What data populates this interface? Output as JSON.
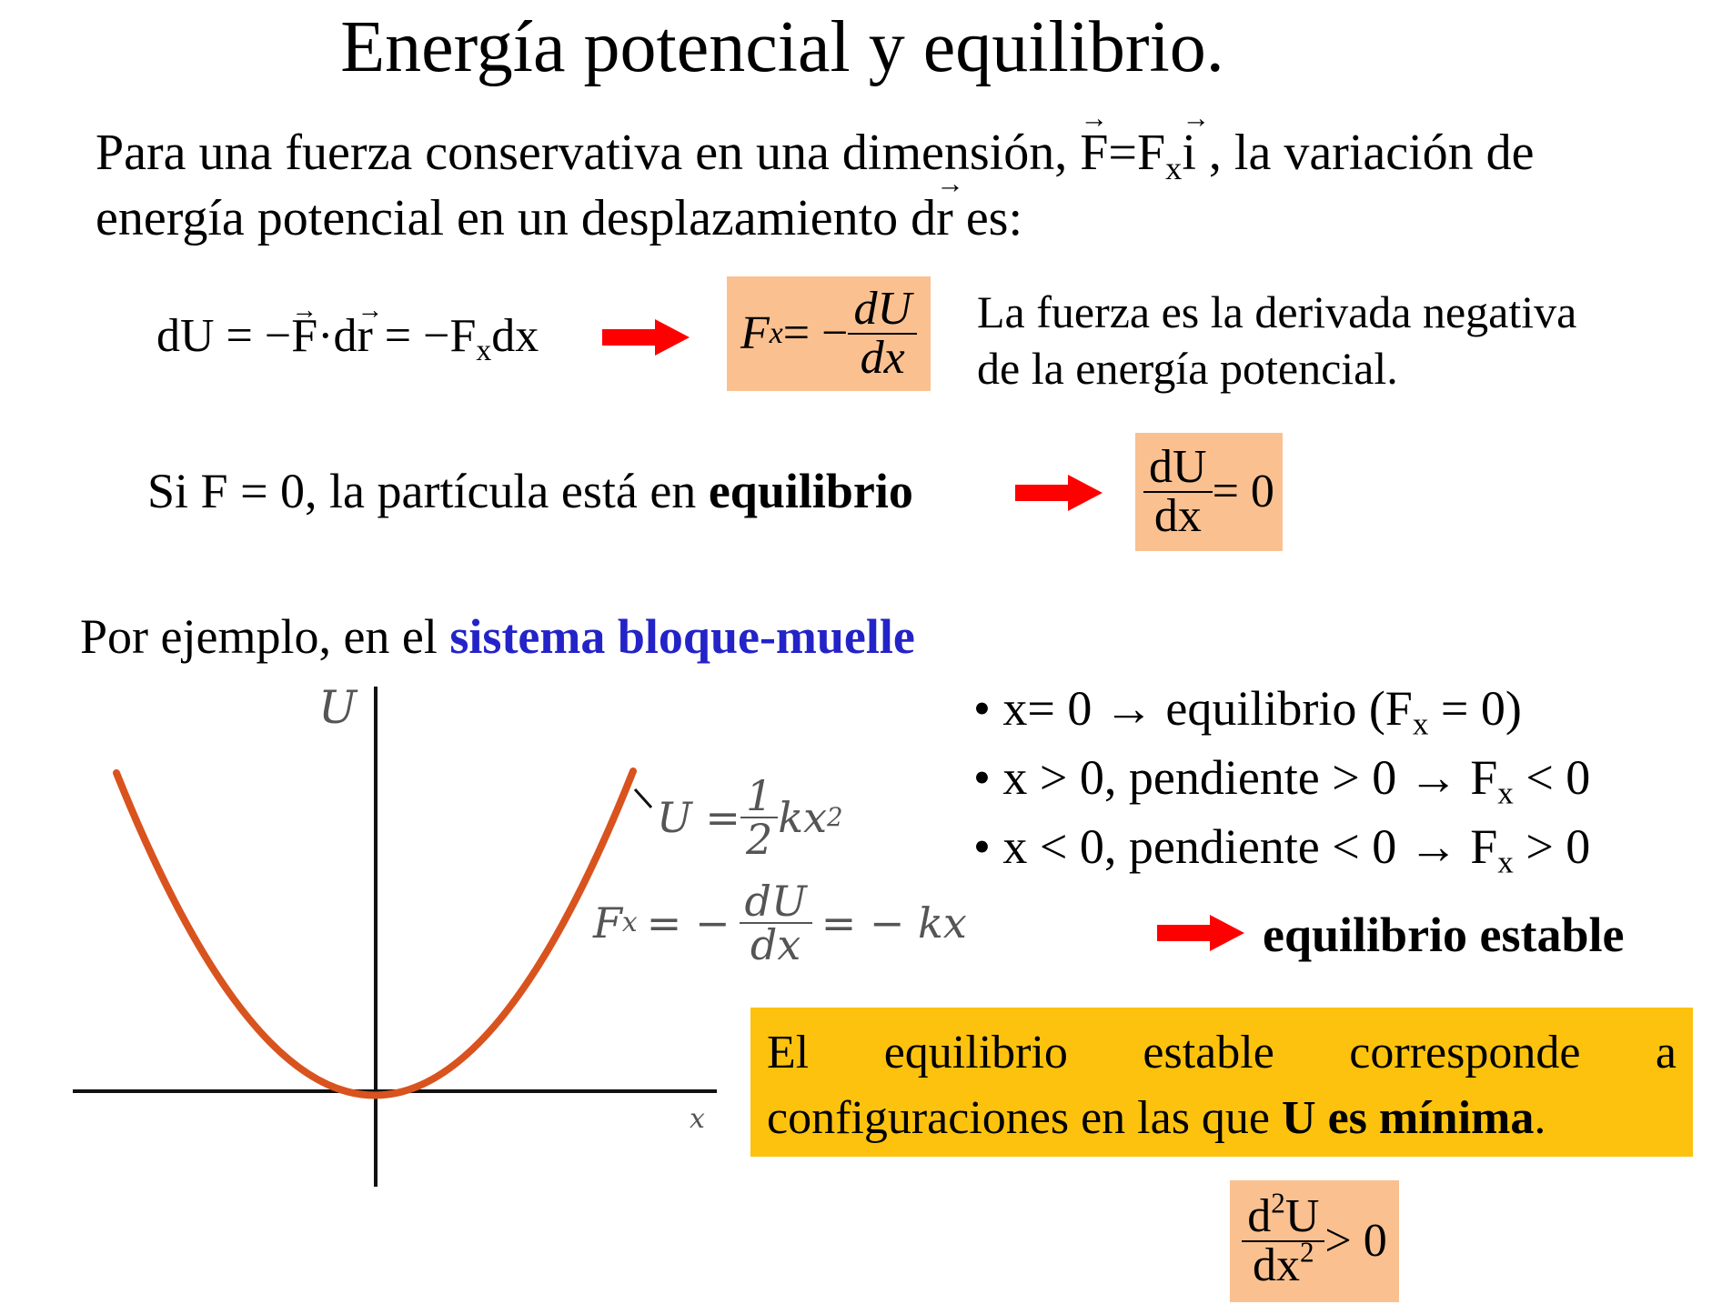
{
  "title": "Energía potencial y equilibrio.",
  "intro": {
    "line1_a": "Para una fuerza conservativa en una dimensión, ",
    "force_F": "F",
    "force_eq": "=F",
    "force_sub": "x",
    "force_i": "i",
    "line1_b": " , la variación de",
    "line2_a": "energía potencial en un desplazamiento d",
    "line2_r": "r",
    "line2_b": " es:"
  },
  "eq1": {
    "left_a": "dU = −",
    "left_F": "F",
    "left_dot": "·d",
    "left_r": "r",
    "left_b": " = −F",
    "left_sub": "x",
    "left_c": "dx",
    "box_F": "F",
    "box_sub": "x",
    "box_eq": " = −",
    "box_num": "dU",
    "box_den": "dx",
    "note_line1": "La fuerza es la derivada negativa",
    "note_line2": "de la energía potencial."
  },
  "eq2": {
    "text_a": "Si F = 0, la partícula está en ",
    "text_bold": "equilibrio",
    "box_num": "dU",
    "box_den": "dx",
    "box_rhs": " = 0"
  },
  "example": {
    "text_a": "Por ejemplo, en el ",
    "text_link": "sistema bloque-muelle",
    "link_color": "#2323c8"
  },
  "graph": {
    "y_label": "U",
    "x_label": "x",
    "curve_color": "#d9531e",
    "formula_U": "U = ",
    "formula_U_num": "1",
    "formula_U_den": "2",
    "formula_U_rhs": "kx",
    "formula_U_sup": "2",
    "formula_F": "F",
    "formula_F_sub": "x",
    "formula_F_eq": "= −",
    "formula_F_num": "dU",
    "formula_F_den": "dx",
    "formula_F_rhs": "= − kx"
  },
  "bullets": [
    {
      "main": "• x= 0  →  equilibrio (F",
      "sub": "x",
      "tail": " =  0)"
    },
    {
      "main": "• x > 0, pendiente > 0 → F",
      "sub": "x",
      "tail": " <  0"
    },
    {
      "main": "• x < 0, pendiente < 0 → F",
      "sub": "x",
      "tail": " > 0"
    }
  ],
  "stable_label": "equilibrio estable",
  "conclusion": {
    "line1": "El equilibrio estable corresponde a",
    "line2_a": "configuraciones en las que ",
    "line2_bold": "U es mínima",
    "line2_b": ".",
    "bg_color": "#fdc20d"
  },
  "eq3": {
    "num": "d",
    "num_sup": "2",
    "num_b": "U",
    "den": "dx",
    "den_sup": "2",
    "rhs": " > 0"
  },
  "colors": {
    "arrow": "#ff0000",
    "box_orange": "#fac090"
  }
}
